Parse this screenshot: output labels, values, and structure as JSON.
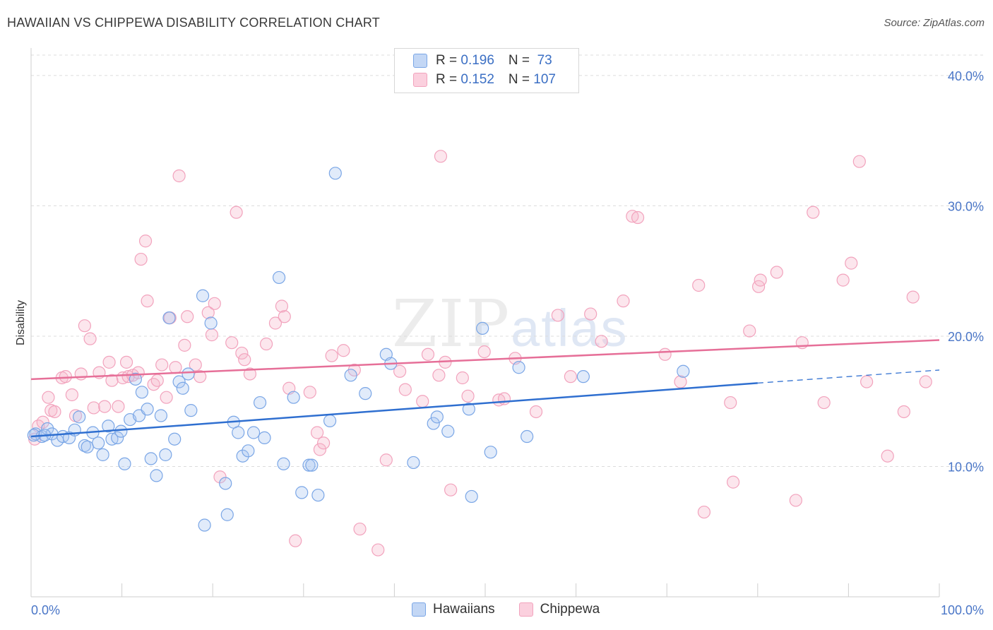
{
  "title": "HAWAIIAN VS CHIPPEWA DISABILITY CORRELATION CHART",
  "source": "Source: ZipAtlas.com",
  "watermark": {
    "zip": "ZIP",
    "atlas": "atlas"
  },
  "legend": {
    "rows": [
      {
        "r_label": "R = ",
        "r_value": "0.196",
        "n_label": "N = ",
        "n_value": " 73",
        "color": "#a9c6f0"
      },
      {
        "r_label": "R = ",
        "r_value": "0.152",
        "n_label": "N = ",
        "n_value": "107",
        "color": "#f6b8cc"
      }
    ]
  },
  "bottom_legend": {
    "series1": "Hawaiians",
    "series2": "Chippewa"
  },
  "chart_data": {
    "type": "scatter",
    "title": "HAWAIIAN VS CHIPPEWA DISABILITY CORRELATION CHART",
    "xlabel": "",
    "ylabel": "Disability",
    "xlim": [
      0,
      100
    ],
    "ylim": [
      0,
      42
    ],
    "x_tick_labels": [
      "0.0%",
      "100.0%"
    ],
    "y_ticks": [
      10,
      20,
      30,
      40
    ],
    "y_tick_labels": [
      "10.0%",
      "20.0%",
      "30.0%",
      "40.0%"
    ],
    "grid": "horizontal dashed",
    "legend_position": "top-center",
    "series": [
      {
        "name": "Hawaiians",
        "color": "#7aa6e6",
        "line_color": "#2f6fd0",
        "trend": {
          "x0": 0,
          "y0": 12.3,
          "x1": 80,
          "y1": 16.4,
          "dashed_to_x": 100,
          "dashed_to_y": 17.4
        },
        "points": [
          [
            0.5,
            12.5
          ],
          [
            1.2,
            12.3
          ],
          [
            1.8,
            12.9
          ],
          [
            2.3,
            12.5
          ],
          [
            2.9,
            12.0
          ],
          [
            3.5,
            12.3
          ],
          [
            4.2,
            12.2
          ],
          [
            4.8,
            12.8
          ],
          [
            5.3,
            13.8
          ],
          [
            5.9,
            11.6
          ],
          [
            6.2,
            11.5
          ],
          [
            6.8,
            12.6
          ],
          [
            7.4,
            11.8
          ],
          [
            7.9,
            10.9
          ],
          [
            8.5,
            13.1
          ],
          [
            8.9,
            12.1
          ],
          [
            9.5,
            12.2
          ],
          [
            9.9,
            12.7
          ],
          [
            10.3,
            10.2
          ],
          [
            10.9,
            13.6
          ],
          [
            11.5,
            16.7
          ],
          [
            11.9,
            13.9
          ],
          [
            12.2,
            15.7
          ],
          [
            12.8,
            14.4
          ],
          [
            13.2,
            10.6
          ],
          [
            13.8,
            9.3
          ],
          [
            14.3,
            13.9
          ],
          [
            14.8,
            10.9
          ],
          [
            15.2,
            21.4
          ],
          [
            15.8,
            12.1
          ],
          [
            16.3,
            16.5
          ],
          [
            16.7,
            16.0
          ],
          [
            17.3,
            17.1
          ],
          [
            17.6,
            14.3
          ],
          [
            18.9,
            23.1
          ],
          [
            19.1,
            5.5
          ],
          [
            19.8,
            21.0
          ],
          [
            21.4,
            8.7
          ],
          [
            21.6,
            6.3
          ],
          [
            22.3,
            13.4
          ],
          [
            22.8,
            12.6
          ],
          [
            23.3,
            10.8
          ],
          [
            23.9,
            11.2
          ],
          [
            24.5,
            12.6
          ],
          [
            25.2,
            14.9
          ],
          [
            25.7,
            12.2
          ],
          [
            27.3,
            24.5
          ],
          [
            27.8,
            10.2
          ],
          [
            28.9,
            15.3
          ],
          [
            29.8,
            8.0
          ],
          [
            30.6,
            10.1
          ],
          [
            30.9,
            10.1
          ],
          [
            31.6,
            7.8
          ],
          [
            32.9,
            13.5
          ],
          [
            33.5,
            32.5
          ],
          [
            35.2,
            17.0
          ],
          [
            36.8,
            15.6
          ],
          [
            39.1,
            18.6
          ],
          [
            39.6,
            17.9
          ],
          [
            42.1,
            10.3
          ],
          [
            44.3,
            13.3
          ],
          [
            44.7,
            13.8
          ],
          [
            45.9,
            12.7
          ],
          [
            48.2,
            14.4
          ],
          [
            48.5,
            7.7
          ],
          [
            49.7,
            20.6
          ],
          [
            50.6,
            11.1
          ],
          [
            53.7,
            17.6
          ],
          [
            54.6,
            12.3
          ],
          [
            60.8,
            16.9
          ],
          [
            71.8,
            17.3
          ],
          [
            0.3,
            12.4
          ],
          [
            1.5,
            12.4
          ]
        ]
      },
      {
        "name": "Chippewa",
        "color": "#f2a3bd",
        "line_color": "#e66f98",
        "trend": {
          "x0": 0,
          "y0": 16.7,
          "x1": 100,
          "y1": 19.7
        },
        "points": [
          [
            0.4,
            12.1
          ],
          [
            0.8,
            13.1
          ],
          [
            1.3,
            13.4
          ],
          [
            1.9,
            15.3
          ],
          [
            2.2,
            14.3
          ],
          [
            2.6,
            14.2
          ],
          [
            3.4,
            16.8
          ],
          [
            3.8,
            16.9
          ],
          [
            4.5,
            15.5
          ],
          [
            4.9,
            13.9
          ],
          [
            5.5,
            17.1
          ],
          [
            5.9,
            20.8
          ],
          [
            6.5,
            19.8
          ],
          [
            6.9,
            14.5
          ],
          [
            7.5,
            17.2
          ],
          [
            8.1,
            14.6
          ],
          [
            8.6,
            18.0
          ],
          [
            8.9,
            16.6
          ],
          [
            9.6,
            14.6
          ],
          [
            10.1,
            16.8
          ],
          [
            10.5,
            18.0
          ],
          [
            10.7,
            16.9
          ],
          [
            11.2,
            17.0
          ],
          [
            11.8,
            17.2
          ],
          [
            12.1,
            25.9
          ],
          [
            12.6,
            27.3
          ],
          [
            12.8,
            22.7
          ],
          [
            13.5,
            16.3
          ],
          [
            13.9,
            16.6
          ],
          [
            14.4,
            17.8
          ],
          [
            14.9,
            15.3
          ],
          [
            15.3,
            21.4
          ],
          [
            15.9,
            17.6
          ],
          [
            16.3,
            32.3
          ],
          [
            16.9,
            19.3
          ],
          [
            17.2,
            21.5
          ],
          [
            18.1,
            17.8
          ],
          [
            18.6,
            16.9
          ],
          [
            19.5,
            21.8
          ],
          [
            19.9,
            20.1
          ],
          [
            20.2,
            22.5
          ],
          [
            20.8,
            9.2
          ],
          [
            22.1,
            19.5
          ],
          [
            22.6,
            29.5
          ],
          [
            23.2,
            18.7
          ],
          [
            23.5,
            18.2
          ],
          [
            24.1,
            17.1
          ],
          [
            25.9,
            19.4
          ],
          [
            26.9,
            21.0
          ],
          [
            27.6,
            22.3
          ],
          [
            27.9,
            21.5
          ],
          [
            28.4,
            16.0
          ],
          [
            29.1,
            4.3
          ],
          [
            30.7,
            15.7
          ],
          [
            31.5,
            12.6
          ],
          [
            31.8,
            11.3
          ],
          [
            32.2,
            11.8
          ],
          [
            33.1,
            18.5
          ],
          [
            34.4,
            18.9
          ],
          [
            35.6,
            17.4
          ],
          [
            36.2,
            5.2
          ],
          [
            38.2,
            3.6
          ],
          [
            39.1,
            10.5
          ],
          [
            40.6,
            17.3
          ],
          [
            41.2,
            15.9
          ],
          [
            43.1,
            15.0
          ],
          [
            43.7,
            18.6
          ],
          [
            44.9,
            17.0
          ],
          [
            45.1,
            33.8
          ],
          [
            45.6,
            18.0
          ],
          [
            46.2,
            8.2
          ],
          [
            47.5,
            16.8
          ],
          [
            48.1,
            15.4
          ],
          [
            49.9,
            18.8
          ],
          [
            51.5,
            15.1
          ],
          [
            52.1,
            15.2
          ],
          [
            53.3,
            18.3
          ],
          [
            55.6,
            14.2
          ],
          [
            58.0,
            21.6
          ],
          [
            59.4,
            16.9
          ],
          [
            61.6,
            21.7
          ],
          [
            62.8,
            19.6
          ],
          [
            65.2,
            22.7
          ],
          [
            66.2,
            29.2
          ],
          [
            66.8,
            29.1
          ],
          [
            69.8,
            18.6
          ],
          [
            71.5,
            16.5
          ],
          [
            73.5,
            23.9
          ],
          [
            74.1,
            6.5
          ],
          [
            77.0,
            14.9
          ],
          [
            77.3,
            8.8
          ],
          [
            79.1,
            20.4
          ],
          [
            80.1,
            23.8
          ],
          [
            80.3,
            24.3
          ],
          [
            82.1,
            24.9
          ],
          [
            84.2,
            7.4
          ],
          [
            84.9,
            19.5
          ],
          [
            86.1,
            29.5
          ],
          [
            87.3,
            14.9
          ],
          [
            89.4,
            24.3
          ],
          [
            90.3,
            25.6
          ],
          [
            91.2,
            33.4
          ],
          [
            92.0,
            16.5
          ],
          [
            94.3,
            10.8
          ],
          [
            96.1,
            14.2
          ],
          [
            97.1,
            23.0
          ],
          [
            98.5,
            16.5
          ]
        ]
      }
    ]
  }
}
